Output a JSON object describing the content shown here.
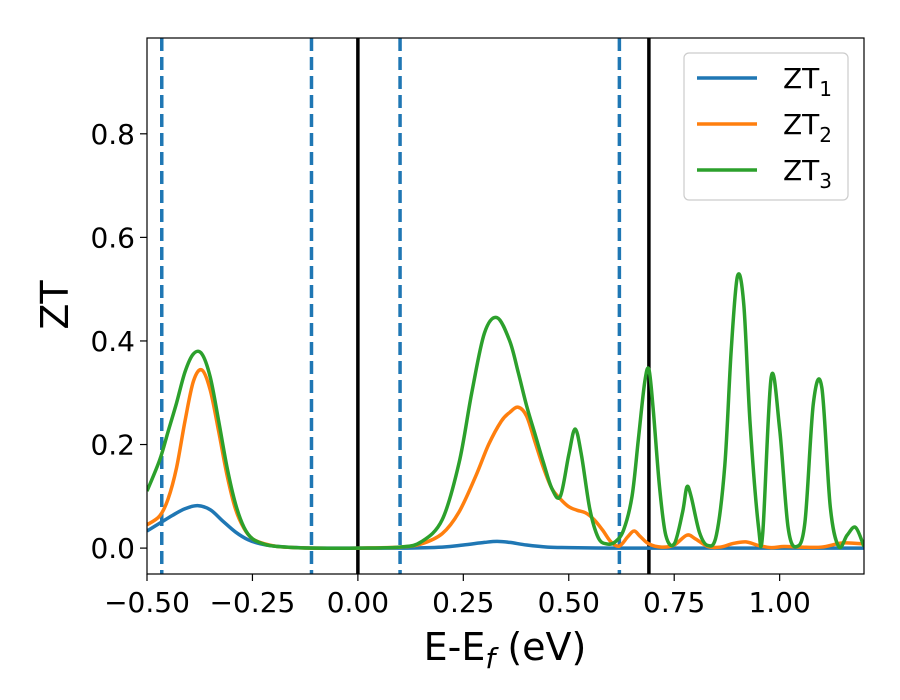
{
  "chart_data": {
    "type": "line",
    "xlabel": "E-E",
    "xlabel_sub": "f",
    "xlabel_unit": " (eV)",
    "ylabel": "ZT",
    "xlim": [
      -0.5,
      1.2
    ],
    "ylim": [
      -0.05,
      0.985
    ],
    "xticks": [
      -0.5,
      -0.25,
      0.0,
      0.25,
      0.5,
      0.75,
      1.0
    ],
    "xtick_labels": [
      "−0.50",
      "−0.25",
      "0.00",
      "0.25",
      "0.50",
      "0.75",
      "1.00"
    ],
    "yticks": [
      0.0,
      0.2,
      0.4,
      0.6,
      0.8
    ],
    "ytick_labels": [
      "0.0",
      "0.2",
      "0.4",
      "0.6",
      "0.8"
    ],
    "legend_position": "top-right",
    "vlines_dashed": [
      -0.465,
      -0.11,
      0.1,
      0.62
    ],
    "vlines_solid": [
      0.0,
      0.69
    ],
    "vline_dashed_color": "#1f77b4",
    "vline_solid_color": "#000000",
    "series": [
      {
        "name": "ZT",
        "sub": "1",
        "color": "#1f77b4",
        "x": [
          -0.5,
          -0.47,
          -0.44,
          -0.41,
          -0.38,
          -0.35,
          -0.32,
          -0.29,
          -0.26,
          -0.23,
          -0.2,
          -0.17,
          -0.14,
          -0.1,
          0.0,
          0.1,
          0.2,
          0.25,
          0.3,
          0.33,
          0.36,
          0.4,
          0.45,
          0.5,
          0.6,
          0.7,
          0.8,
          0.9,
          1.0,
          1.1,
          1.2
        ],
        "y": [
          0.033,
          0.048,
          0.063,
          0.076,
          0.082,
          0.074,
          0.052,
          0.031,
          0.016,
          0.008,
          0.004,
          0.002,
          0.001,
          0.0,
          0.0,
          0.0,
          0.002,
          0.006,
          0.011,
          0.013,
          0.011,
          0.006,
          0.002,
          0.001,
          0.0,
          0.0,
          0.0,
          0.0,
          0.0,
          0.0,
          0.0
        ]
      },
      {
        "name": "ZT",
        "sub": "2",
        "color": "#ff7f0e",
        "x": [
          -0.5,
          -0.47,
          -0.45,
          -0.43,
          -0.41,
          -0.39,
          -0.37,
          -0.35,
          -0.33,
          -0.31,
          -0.29,
          -0.27,
          -0.25,
          -0.22,
          -0.19,
          -0.15,
          -0.1,
          0.0,
          0.1,
          0.15,
          0.2,
          0.24,
          0.28,
          0.31,
          0.34,
          0.36,
          0.38,
          0.4,
          0.42,
          0.44,
          0.46,
          0.48,
          0.5,
          0.52,
          0.54,
          0.56,
          0.58,
          0.6,
          0.62,
          0.64,
          0.655,
          0.67,
          0.69,
          0.72,
          0.75,
          0.78,
          0.8,
          0.83,
          0.86,
          0.89,
          0.92,
          0.95,
          0.98,
          1.01,
          1.05,
          1.1,
          1.15,
          1.2
        ],
        "y": [
          0.045,
          0.062,
          0.095,
          0.155,
          0.245,
          0.322,
          0.344,
          0.305,
          0.225,
          0.14,
          0.075,
          0.038,
          0.018,
          0.008,
          0.003,
          0.001,
          0.0,
          0.0,
          0.002,
          0.008,
          0.028,
          0.07,
          0.14,
          0.2,
          0.245,
          0.262,
          0.272,
          0.255,
          0.205,
          0.155,
          0.115,
          0.095,
          0.08,
          0.073,
          0.068,
          0.055,
          0.035,
          0.012,
          0.004,
          0.022,
          0.033,
          0.022,
          0.008,
          0.002,
          0.006,
          0.025,
          0.018,
          0.003,
          0.002,
          0.009,
          0.012,
          0.005,
          0.001,
          0.003,
          0.002,
          0.002,
          0.01,
          0.008
        ]
      },
      {
        "name": "ZT",
        "sub": "3",
        "color": "#2ca02c",
        "x": [
          -0.5,
          -0.47,
          -0.45,
          -0.43,
          -0.41,
          -0.39,
          -0.37,
          -0.35,
          -0.33,
          -0.31,
          -0.29,
          -0.27,
          -0.25,
          -0.22,
          -0.19,
          -0.15,
          -0.1,
          0.0,
          0.1,
          0.15,
          0.2,
          0.24,
          0.27,
          0.3,
          0.33,
          0.36,
          0.38,
          0.4,
          0.42,
          0.44,
          0.46,
          0.48,
          0.5,
          0.515,
          0.53,
          0.55,
          0.57,
          0.59,
          0.61,
          0.63,
          0.65,
          0.665,
          0.68,
          0.69,
          0.7,
          0.715,
          0.73,
          0.75,
          0.77,
          0.78,
          0.79,
          0.81,
          0.83,
          0.85,
          0.87,
          0.885,
          0.9,
          0.915,
          0.93,
          0.95,
          0.96,
          0.98,
          1.0,
          1.02,
          1.04,
          1.06,
          1.08,
          1.1,
          1.12,
          1.14,
          1.16,
          1.18,
          1.2
        ],
        "y": [
          0.11,
          0.17,
          0.225,
          0.28,
          0.34,
          0.375,
          0.375,
          0.33,
          0.245,
          0.155,
          0.085,
          0.04,
          0.018,
          0.007,
          0.003,
          0.001,
          0.0,
          0.0,
          0.002,
          0.012,
          0.055,
          0.165,
          0.3,
          0.415,
          0.445,
          0.4,
          0.34,
          0.275,
          0.22,
          0.165,
          0.115,
          0.1,
          0.18,
          0.23,
          0.18,
          0.075,
          0.02,
          0.008,
          0.012,
          0.035,
          0.1,
          0.21,
          0.32,
          0.345,
          0.27,
          0.12,
          0.025,
          0.008,
          0.07,
          0.118,
          0.1,
          0.03,
          0.005,
          0.025,
          0.16,
          0.38,
          0.525,
          0.47,
          0.24,
          0.04,
          0.03,
          0.33,
          0.23,
          0.04,
          0.003,
          0.05,
          0.28,
          0.31,
          0.08,
          0.003,
          0.025,
          0.04,
          0.003
        ]
      }
    ]
  }
}
